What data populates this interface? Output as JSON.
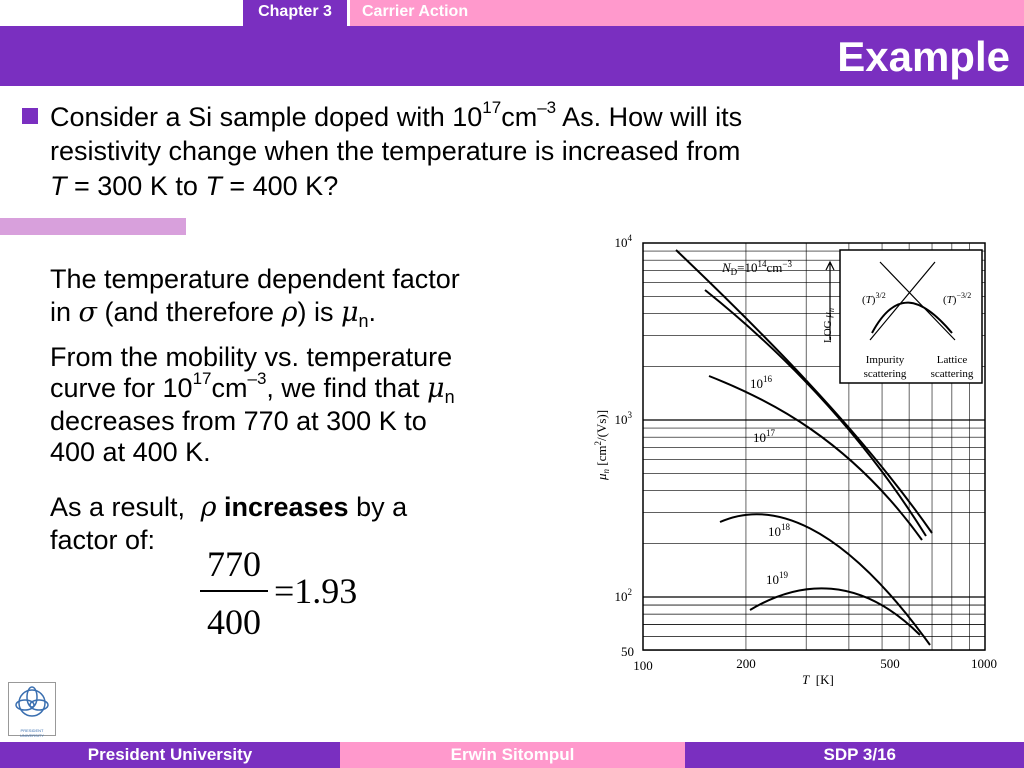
{
  "header": {
    "chapter": "Chapter 3",
    "topic": "Carrier Action",
    "title": "Example"
  },
  "bullet": [
    "Consider a Si sample doped with 10",
    "17",
    "cm",
    "–3",
    " As. How will its",
    "resistivity change when the temperature is increased from",
    "T",
    " = 300 K to ",
    "T",
    " = 400 K?"
  ],
  "body": {
    "p1": [
      "The temperature dependent factor",
      "in ",
      "σ",
      " (and therefore ",
      "ρ",
      ") is ",
      "μ",
      "n",
      "."
    ],
    "p2": [
      "From the mobility vs. temperature",
      "curve for 10",
      "17",
      "cm",
      "–3",
      ", we find that ",
      "μ",
      "n",
      "decreases from 770 at 300 K to",
      "400 at 400 K."
    ],
    "p3": [
      "As a result, ",
      "ρ",
      "increases",
      " by a",
      "factor of:"
    ]
  },
  "equation": {
    "numerator": "770",
    "denominator": "400",
    "result": "=1.93"
  },
  "figure": {
    "yticks": [
      [
        "10",
        "4"
      ],
      [
        "10",
        "3"
      ],
      [
        "10",
        "2"
      ],
      [
        "50"
      ]
    ],
    "xticks": [
      "100",
      "200",
      "500",
      "1000"
    ],
    "ylabel": [
      "μ",
      "n",
      " [cm",
      "2",
      "/(Vs)]"
    ],
    "xlabel": [
      "T",
      "  [K]"
    ],
    "curve_labels": [
      [
        "N",
        "D",
        "=10",
        "14",
        "cm",
        "−3"
      ],
      [
        "10",
        "16"
      ],
      [
        "10",
        "17"
      ],
      [
        "10",
        "18"
      ],
      [
        "10",
        "19"
      ]
    ],
    "inset": {
      "axis": [
        "LOG ",
        "μ",
        "n"
      ],
      "left": [
        "(",
        "T",
        ")",
        "3/2"
      ],
      "right": [
        "(",
        "T",
        ")",
        "−3/2"
      ],
      "impurity": [
        "Impurity",
        "scattering"
      ],
      "lattice": [
        "Lattice",
        "scattering"
      ]
    }
  },
  "logo": "PRESIDENT UNIVERSITY",
  "footer": [
    "President University",
    "Erwin Sitompul",
    "SDP 3/16"
  ]
}
